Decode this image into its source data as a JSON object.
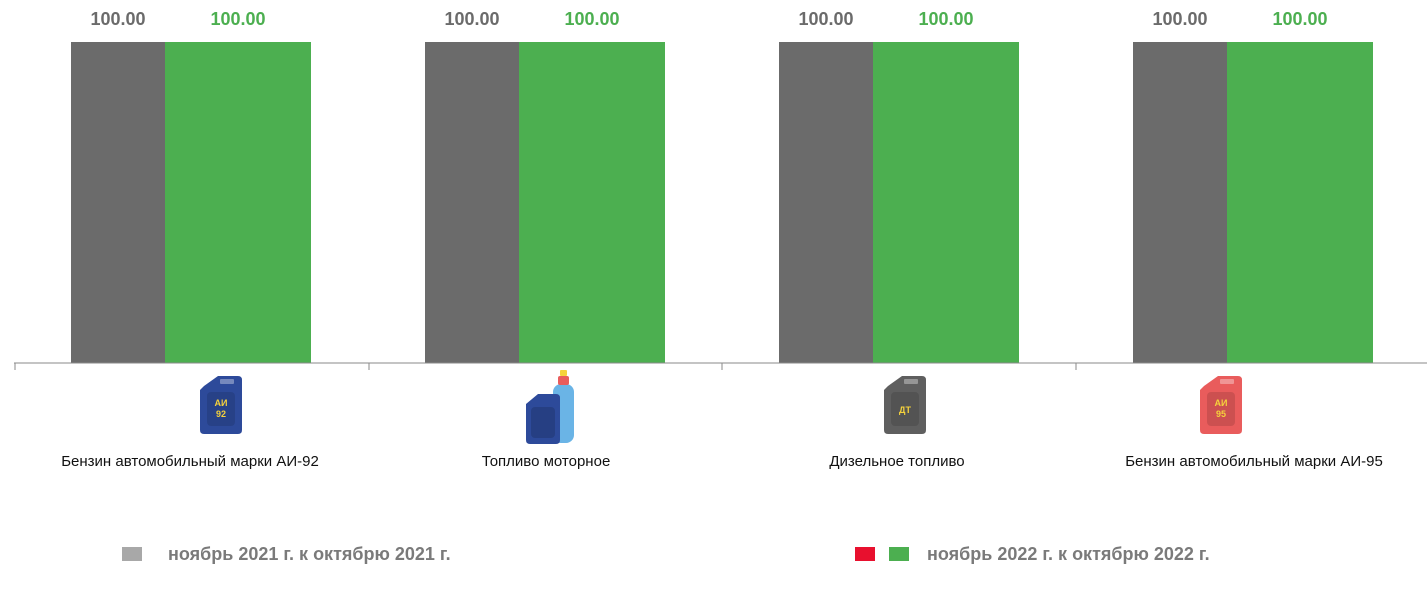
{
  "chart_data": {
    "type": "bar",
    "categories": [
      "Бензин автомобильный марки АИ-92",
      "Топливо моторное",
      "Дизельное топливо",
      "Бензин автомобильный марки АИ-95"
    ],
    "series": [
      {
        "name": "ноябрь 2021 г. к октябрю 2021 г.",
        "values": [
          100.0,
          100.0,
          100.0,
          100.0
        ],
        "color": "#6b6b6b",
        "label_color": "#6b6b6b"
      },
      {
        "name": "ноябрь 2022 г. к октябрю 2022 г.",
        "values": [
          100.0,
          100.0,
          100.0,
          100.0
        ],
        "color": "#4caf50",
        "label_color": "#4caf50"
      }
    ],
    "data_labels": [
      [
        "100.00",
        "100.00",
        "100.00",
        "100.00"
      ],
      [
        "100.00",
        "100.00",
        "100.00",
        "100.00"
      ]
    ],
    "ylim": [
      0,
      100
    ],
    "grid": false,
    "legend_position": "bottom",
    "icons": [
      {
        "name": "canister-ai92-icon",
        "text_top": "АИ",
        "text_bottom": "92",
        "body_color": "#2d4a9a",
        "text_color": "#f5d23c"
      },
      {
        "name": "canister-gas-cylinder-icon",
        "text_top": "",
        "text_bottom": "",
        "body_color": "#2d4a9a",
        "text_color": "#f5d23c"
      },
      {
        "name": "canister-dt-icon",
        "text_top": "ДТ",
        "text_bottom": "",
        "body_color": "#5f5f5f",
        "text_color": "#f5d23c"
      },
      {
        "name": "canister-ai95-icon",
        "text_top": "АИ",
        "text_bottom": "95",
        "body_color": "#e95c5c",
        "text_color": "#f5d23c"
      }
    ]
  },
  "legend": {
    "items": [
      {
        "label": "ноябрь 2021 г. к октябрю 2021 г.",
        "swatches": [
          "#a8a8a8"
        ]
      },
      {
        "label": "ноябрь 2022 г. к октябрю 2022 г.",
        "swatches": [
          "#e8102e",
          "#4caf50"
        ]
      }
    ]
  }
}
